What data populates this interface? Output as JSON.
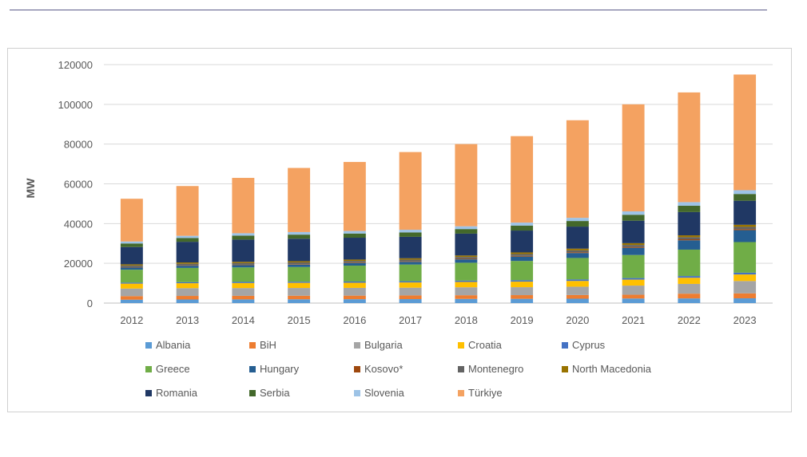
{
  "chart_data": {
    "type": "bar",
    "stacked": true,
    "title": "",
    "xlabel": "",
    "ylabel": "MW",
    "ylim": [
      0,
      120000
    ],
    "yticks": [
      "0",
      "20000",
      "40000",
      "60000",
      "80000",
      "100000",
      "120000"
    ],
    "grid": true,
    "legend_position": "bottom",
    "categories": [
      "2012",
      "2013",
      "2014",
      "2015",
      "2016",
      "2017",
      "2018",
      "2019",
      "2020",
      "2021",
      "2022",
      "2023"
    ],
    "series": [
      {
        "name": "Albania",
        "color": "#5b9bd5",
        "values": [
          1700,
          1800,
          1850,
          1900,
          1950,
          2000,
          2100,
          2150,
          2200,
          2300,
          2350,
          2400
        ]
      },
      {
        "name": "BiH",
        "color": "#ed7d31",
        "values": [
          1800,
          1800,
          1800,
          1800,
          1800,
          1850,
          1850,
          1850,
          1850,
          1900,
          2400,
          2500
        ]
      },
      {
        "name": "Bulgaria",
        "color": "#a5a5a5",
        "values": [
          3800,
          3900,
          3900,
          3900,
          3900,
          3900,
          4000,
          4000,
          4200,
          4600,
          4900,
          6200
        ]
      },
      {
        "name": "Croatia",
        "color": "#ffc000",
        "values": [
          2500,
          2500,
          2550,
          2600,
          2600,
          2650,
          2700,
          2800,
          2900,
          3000,
          3100,
          3300
        ]
      },
      {
        "name": "Cyprus",
        "color": "#4472c4",
        "values": [
          500,
          500,
          550,
          550,
          600,
          600,
          650,
          700,
          750,
          800,
          850,
          900
        ]
      },
      {
        "name": "Greece",
        "color": "#70ad47",
        "values": [
          6500,
          7200,
          7300,
          7400,
          8000,
          8400,
          9000,
          9700,
          10800,
          11600,
          13300,
          15400
        ]
      },
      {
        "name": "Hungary",
        "color": "#255e91",
        "values": [
          1100,
          1100,
          1150,
          1200,
          1250,
          1350,
          1700,
          2200,
          2500,
          3600,
          4700,
          6000
        ]
      },
      {
        "name": "Kosovo*",
        "color": "#9e480e",
        "values": [
          200,
          200,
          200,
          250,
          250,
          250,
          300,
          350,
          400,
          450,
          500,
          550
        ]
      },
      {
        "name": "Montenegro",
        "color": "#636363",
        "values": [
          800,
          800,
          800,
          850,
          850,
          850,
          900,
          950,
          950,
          1000,
          1050,
          1100
        ]
      },
      {
        "name": "North Macedonia",
        "color": "#997300",
        "values": [
          600,
          650,
          650,
          650,
          700,
          700,
          750,
          800,
          850,
          900,
          950,
          1050
        ]
      },
      {
        "name": "Romania",
        "color": "#203864",
        "values": [
          8700,
          10400,
          11200,
          11300,
          11000,
          10800,
          11000,
          11000,
          11100,
          11300,
          11700,
          12100
        ]
      },
      {
        "name": "Serbia",
        "color": "#43682b",
        "values": [
          1800,
          1900,
          2000,
          2050,
          2100,
          2200,
          2300,
          2500,
          2800,
          3000,
          3200,
          3400
        ]
      },
      {
        "name": "Slovenia",
        "color": "#9dc3e6",
        "values": [
          1000,
          1100,
          1200,
          1300,
          1300,
          1350,
          1400,
          1500,
          1600,
          1700,
          1800,
          1900
        ]
      },
      {
        "name": "Türkiye",
        "color": "#f4a261",
        "values": [
          21500,
          25050,
          27850,
          32250,
          34700,
          39100,
          41350,
          43500,
          49100,
          53850,
          55200,
          58200
        ]
      }
    ]
  }
}
